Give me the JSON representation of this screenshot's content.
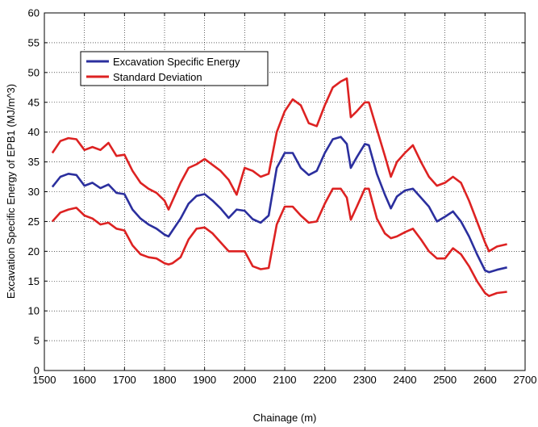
{
  "chart_data": {
    "type": "line",
    "title": "",
    "xlabel": "Chainage (m)",
    "ylabel": "Excavation Specific Energy of EPB1 (MJ/m^3)",
    "xlim": [
      1500,
      2700
    ],
    "ylim": [
      0,
      60
    ],
    "xticks": [
      1500,
      1600,
      1700,
      1800,
      1900,
      2000,
      2100,
      2200,
      2300,
      2400,
      2500,
      2600,
      2700
    ],
    "yticks": [
      0,
      5,
      10,
      15,
      20,
      25,
      30,
      35,
      40,
      45,
      50,
      55,
      60
    ],
    "grid": true,
    "grid_style": "dotted",
    "legend_position": "top-left",
    "series": [
      {
        "name": "Excavation Specific Energy",
        "color": "#2b2f9e",
        "x": [
          1520,
          1540,
          1560,
          1580,
          1600,
          1620,
          1640,
          1660,
          1680,
          1700,
          1720,
          1740,
          1760,
          1780,
          1800,
          1810,
          1820,
          1840,
          1860,
          1880,
          1900,
          1920,
          1940,
          1960,
          1980,
          2000,
          2020,
          2040,
          2060,
          2080,
          2100,
          2120,
          2140,
          2160,
          2180,
          2200,
          2220,
          2240,
          2255,
          2265,
          2280,
          2300,
          2310,
          2330,
          2350,
          2365,
          2380,
          2400,
          2420,
          2440,
          2460,
          2480,
          2500,
          2520,
          2540,
          2560,
          2580,
          2600,
          2610,
          2630,
          2655
        ],
        "values": [
          30.8,
          32.5,
          33.0,
          32.8,
          31.0,
          31.5,
          30.6,
          31.2,
          29.8,
          29.6,
          27.0,
          25.5,
          24.5,
          23.8,
          22.8,
          22.5,
          23.5,
          25.5,
          28.0,
          29.3,
          29.6,
          28.5,
          27.2,
          25.6,
          27.0,
          26.8,
          25.4,
          24.8,
          26.0,
          34.0,
          36.5,
          36.5,
          34.0,
          32.8,
          33.5,
          36.5,
          38.8,
          39.2,
          38.0,
          34.0,
          35.8,
          38.0,
          37.8,
          33.0,
          29.5,
          27.2,
          29.2,
          30.2,
          30.5,
          29.0,
          27.5,
          25.0,
          25.8,
          26.7,
          25.0,
          22.5,
          19.5,
          16.8,
          16.5,
          16.9,
          17.3
        ]
      },
      {
        "name": "Standard Deviation",
        "color": "#dd2222",
        "x": [
          1520,
          1540,
          1560,
          1580,
          1600,
          1620,
          1640,
          1660,
          1680,
          1700,
          1720,
          1740,
          1760,
          1780,
          1800,
          1810,
          1820,
          1840,
          1860,
          1880,
          1900,
          1920,
          1940,
          1960,
          1980,
          2000,
          2020,
          2040,
          2060,
          2080,
          2100,
          2120,
          2140,
          2160,
          2180,
          2200,
          2220,
          2240,
          2255,
          2265,
          2280,
          2300,
          2310,
          2330,
          2350,
          2365,
          2380,
          2400,
          2420,
          2440,
          2460,
          2480,
          2500,
          2520,
          2540,
          2560,
          2580,
          2600,
          2610,
          2630,
          2655
        ],
        "values": [
          36.5,
          38.5,
          39.0,
          38.8,
          37.0,
          37.5,
          37.0,
          38.2,
          36.0,
          36.2,
          33.5,
          31.5,
          30.5,
          29.8,
          28.5,
          27.0,
          28.5,
          31.5,
          34.0,
          34.6,
          35.5,
          34.5,
          33.5,
          32.0,
          29.5,
          34.0,
          33.5,
          32.5,
          33.0,
          40.0,
          43.5,
          45.5,
          44.5,
          41.5,
          41.0,
          44.5,
          47.5,
          48.5,
          49.0,
          42.5,
          43.5,
          45.0,
          45.0,
          40.5,
          36.0,
          32.5,
          35.0,
          36.5,
          37.8,
          35.0,
          32.5,
          31.0,
          31.5,
          32.5,
          31.5,
          28.5,
          25.0,
          21.5,
          20.0,
          20.8,
          21.2
        ]
      },
      {
        "name": "",
        "color": "#dd2222",
        "x": [
          1520,
          1540,
          1560,
          1580,
          1600,
          1620,
          1640,
          1660,
          1680,
          1700,
          1720,
          1740,
          1760,
          1780,
          1800,
          1810,
          1820,
          1840,
          1860,
          1880,
          1900,
          1920,
          1940,
          1960,
          1980,
          2000,
          2020,
          2040,
          2060,
          2080,
          2100,
          2120,
          2140,
          2160,
          2180,
          2200,
          2220,
          2240,
          2255,
          2265,
          2280,
          2300,
          2310,
          2330,
          2350,
          2365,
          2380,
          2400,
          2420,
          2440,
          2460,
          2480,
          2500,
          2520,
          2540,
          2560,
          2580,
          2600,
          2610,
          2630,
          2655
        ],
        "values": [
          25.0,
          26.5,
          27.0,
          27.3,
          26.0,
          25.5,
          24.5,
          24.8,
          23.8,
          23.5,
          21.0,
          19.5,
          19.0,
          18.8,
          18.0,
          17.8,
          18.0,
          19.0,
          22.0,
          23.8,
          24.0,
          23.0,
          21.5,
          20.0,
          20.0,
          20.0,
          17.5,
          17.0,
          17.2,
          24.5,
          27.5,
          27.5,
          26.0,
          24.8,
          25.0,
          28.0,
          30.5,
          30.5,
          29.0,
          25.3,
          27.5,
          30.5,
          30.5,
          25.5,
          23.0,
          22.2,
          22.5,
          23.2,
          23.8,
          22.0,
          20.0,
          18.8,
          18.8,
          20.5,
          19.5,
          17.5,
          15.0,
          13.0,
          12.5,
          13.0,
          13.2
        ]
      }
    ]
  }
}
